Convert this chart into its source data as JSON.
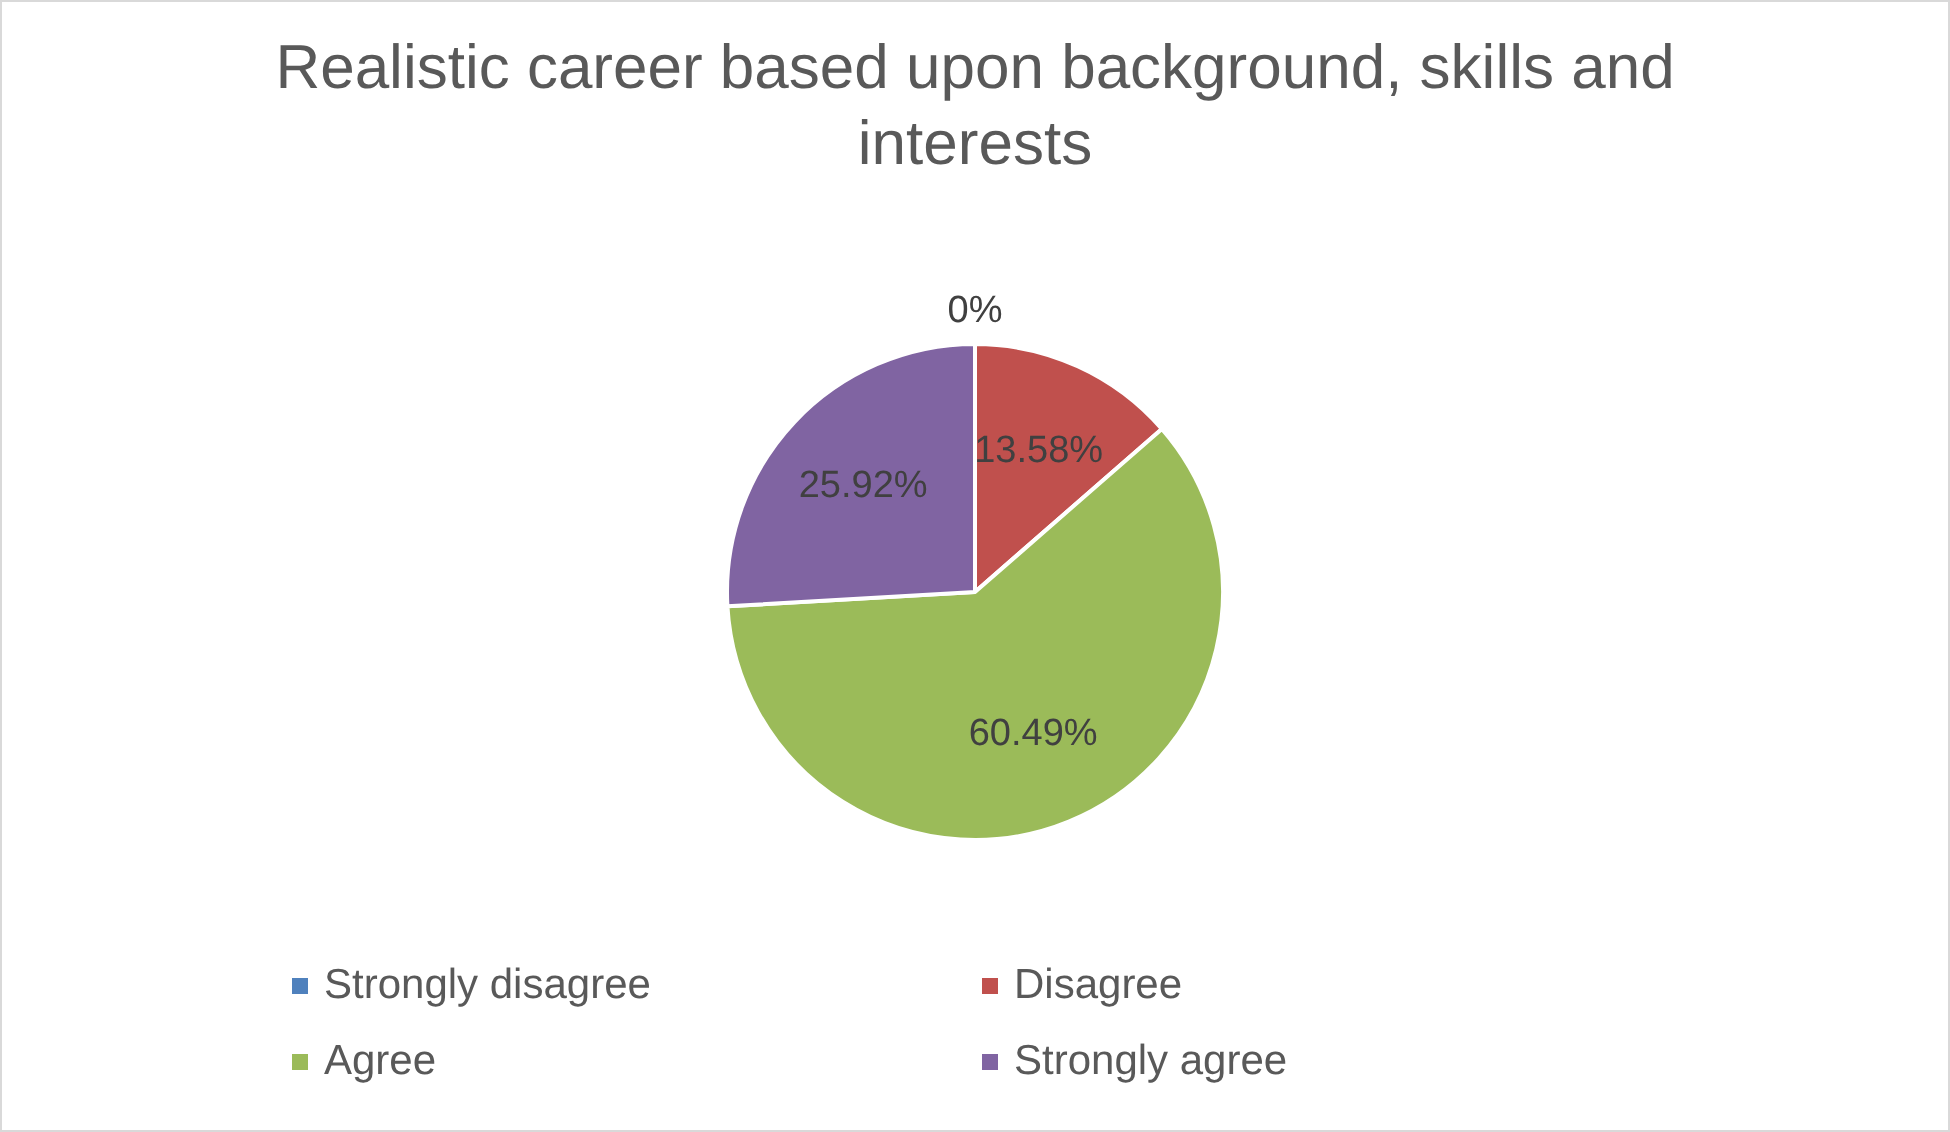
{
  "chart_data": {
    "type": "pie",
    "title": "Realistic career based upon background, skills and interests",
    "categories": [
      "Strongly disagree",
      "Disagree",
      "Agree",
      "Strongly agree"
    ],
    "values": [
      0,
      13.58,
      60.49,
      25.92
    ],
    "value_labels": [
      "0%",
      "13.58%",
      "60.49%",
      "25.92%"
    ],
    "colors": [
      "#4f81bd",
      "#c0504d",
      "#9bbb59",
      "#8064a2"
    ],
    "legend": "bottom"
  }
}
